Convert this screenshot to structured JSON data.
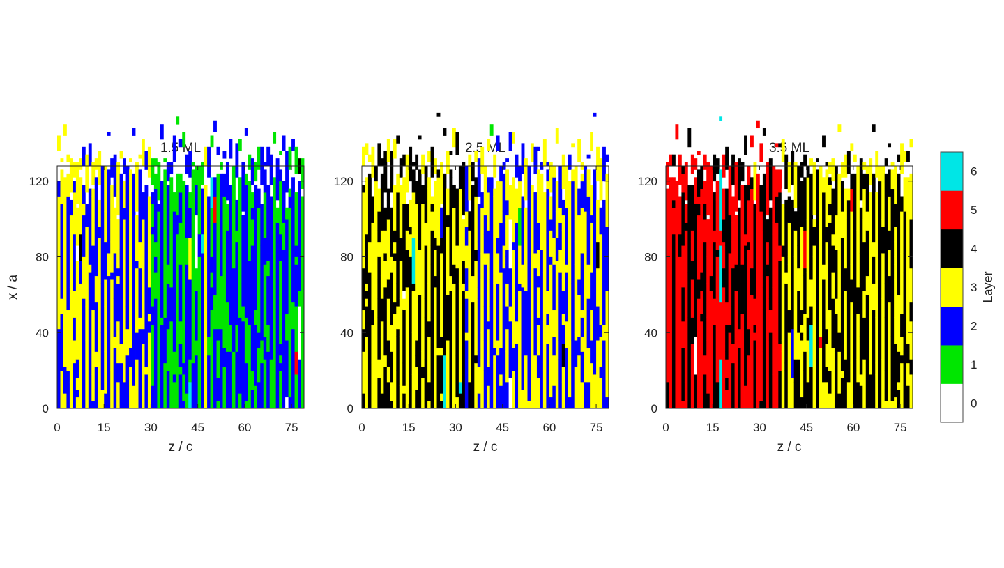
{
  "chart_data": {
    "type": "heatmap",
    "description_note": "",
    "panels": [
      {
        "title": "1.5 ML",
        "xlabel": "z / c",
        "ylabel": "x / a",
        "xlim": [
          0,
          79
        ],
        "ylim": [
          0,
          128
        ],
        "xticks": [
          "0",
          "15",
          "30",
          "45",
          "60",
          "75"
        ],
        "yticks": [
          "0",
          "40",
          "80",
          "120"
        ],
        "stripes": [
          3,
          2,
          3,
          2,
          3,
          2,
          3,
          3,
          2,
          3,
          2,
          3,
          2,
          3,
          2,
          3,
          2,
          3,
          2,
          3,
          2,
          3,
          2,
          3,
          2,
          3,
          2,
          3,
          2,
          3,
          1,
          2,
          1,
          2,
          1,
          2,
          1,
          2,
          1,
          2,
          1,
          2,
          2,
          1,
          2,
          1,
          2,
          3,
          2,
          1,
          2,
          1,
          2,
          1,
          2,
          2,
          1,
          2,
          1,
          2,
          2,
          1,
          2,
          2,
          1,
          2,
          1,
          2,
          2,
          1,
          2,
          1,
          2,
          2,
          1,
          2,
          1,
          2,
          1
        ],
        "stripe_alt": [
          2,
          3,
          2,
          3,
          2,
          3,
          2,
          2,
          3,
          2,
          3,
          2,
          3,
          2,
          3,
          2,
          3,
          2,
          3,
          2,
          3,
          2,
          3,
          2,
          3,
          2,
          3,
          2,
          3,
          2,
          2,
          1,
          2,
          1,
          2,
          1,
          2,
          1,
          2,
          1,
          2,
          1,
          1,
          2,
          1,
          2,
          1,
          2,
          1,
          2,
          1,
          2,
          1,
          2,
          1,
          1,
          2,
          1,
          2,
          1,
          1,
          2,
          1,
          1,
          2,
          1,
          2,
          1,
          1,
          2,
          1,
          2,
          1,
          1,
          2,
          1,
          2,
          1,
          2
        ],
        "seed": 11
      },
      {
        "title": "2.5 ML",
        "xlabel": "z / c",
        "ylabel": "",
        "xlim": [
          0,
          79
        ],
        "ylim": [
          0,
          128
        ],
        "xticks": [
          "0",
          "15",
          "30",
          "45",
          "60",
          "75"
        ],
        "yticks": [
          "0",
          "40",
          "80",
          "120"
        ],
        "stripes": [
          3,
          3,
          4,
          3,
          3,
          4,
          3,
          4,
          3,
          4,
          3,
          4,
          3,
          4,
          3,
          4,
          3,
          3,
          4,
          3,
          4,
          3,
          4,
          3,
          4,
          3,
          4,
          3,
          4,
          3,
          4,
          3,
          4,
          2,
          3,
          4,
          3,
          2,
          3,
          2,
          3,
          2,
          3,
          2,
          3,
          2,
          3,
          2,
          3,
          2,
          3,
          2,
          3,
          2,
          3,
          2,
          3,
          2,
          3,
          2,
          3,
          2,
          3,
          2,
          3,
          2,
          3,
          2,
          3,
          3,
          2,
          3,
          2,
          3,
          2,
          3,
          3,
          2,
          3
        ],
        "stripe_alt": [
          4,
          4,
          3,
          4,
          4,
          3,
          4,
          3,
          4,
          3,
          4,
          3,
          4,
          3,
          4,
          3,
          4,
          4,
          3,
          4,
          3,
          4,
          3,
          4,
          3,
          4,
          3,
          4,
          3,
          4,
          3,
          4,
          3,
          3,
          4,
          3,
          4,
          3,
          2,
          3,
          2,
          3,
          2,
          3,
          2,
          3,
          2,
          3,
          2,
          3,
          2,
          3,
          2,
          3,
          2,
          3,
          2,
          3,
          2,
          3,
          2,
          3,
          2,
          3,
          2,
          3,
          2,
          3,
          2,
          2,
          3,
          2,
          3,
          2,
          3,
          2,
          2,
          3,
          2
        ],
        "seed": 23
      },
      {
        "title": "3.5 ML",
        "xlabel": "z / c",
        "ylabel": "",
        "xlim": [
          0,
          79
        ],
        "ylim": [
          0,
          128
        ],
        "xticks": [
          "0",
          "15",
          "30",
          "45",
          "60",
          "75"
        ],
        "yticks": [
          "0",
          "40",
          "80",
          "120"
        ],
        "stripes": [
          5,
          5,
          4,
          5,
          5,
          4,
          5,
          4,
          5,
          4,
          5,
          5,
          4,
          5,
          5,
          4,
          5,
          6,
          5,
          4,
          5,
          4,
          5,
          4,
          5,
          4,
          5,
          5,
          4,
          5,
          5,
          4,
          5,
          4,
          5,
          5,
          4,
          3,
          4,
          3,
          4,
          3,
          4,
          3,
          4,
          3,
          4,
          3,
          4,
          3,
          4,
          3,
          4,
          3,
          4,
          3,
          4,
          3,
          4,
          3,
          4,
          3,
          4,
          3,
          4,
          3,
          4,
          3,
          4,
          3,
          4,
          3,
          4,
          3,
          4,
          3,
          4,
          3,
          3
        ],
        "stripe_alt": [
          4,
          4,
          5,
          4,
          4,
          5,
          4,
          5,
          4,
          5,
          4,
          4,
          5,
          4,
          4,
          5,
          4,
          5,
          4,
          5,
          4,
          5,
          4,
          5,
          4,
          5,
          4,
          4,
          5,
          4,
          4,
          5,
          4,
          5,
          4,
          4,
          5,
          4,
          3,
          4,
          3,
          4,
          3,
          4,
          3,
          4,
          3,
          4,
          3,
          4,
          3,
          4,
          3,
          4,
          3,
          4,
          3,
          4,
          3,
          4,
          3,
          4,
          3,
          4,
          3,
          4,
          3,
          4,
          3,
          4,
          3,
          4,
          3,
          4,
          3,
          4,
          3,
          4,
          4
        ],
        "seed": 37
      }
    ],
    "colorbar": {
      "label": "Layer",
      "levels": [
        0,
        1,
        2,
        3,
        4,
        5,
        6
      ],
      "tick_labels": [
        "0",
        "1",
        "2",
        "3",
        "4",
        "5",
        "6"
      ],
      "colors": [
        "#ffffff",
        "#00e600",
        "#0000ff",
        "#ffff00",
        "#000000",
        "#ff0000",
        "#00e6e6"
      ]
    }
  }
}
